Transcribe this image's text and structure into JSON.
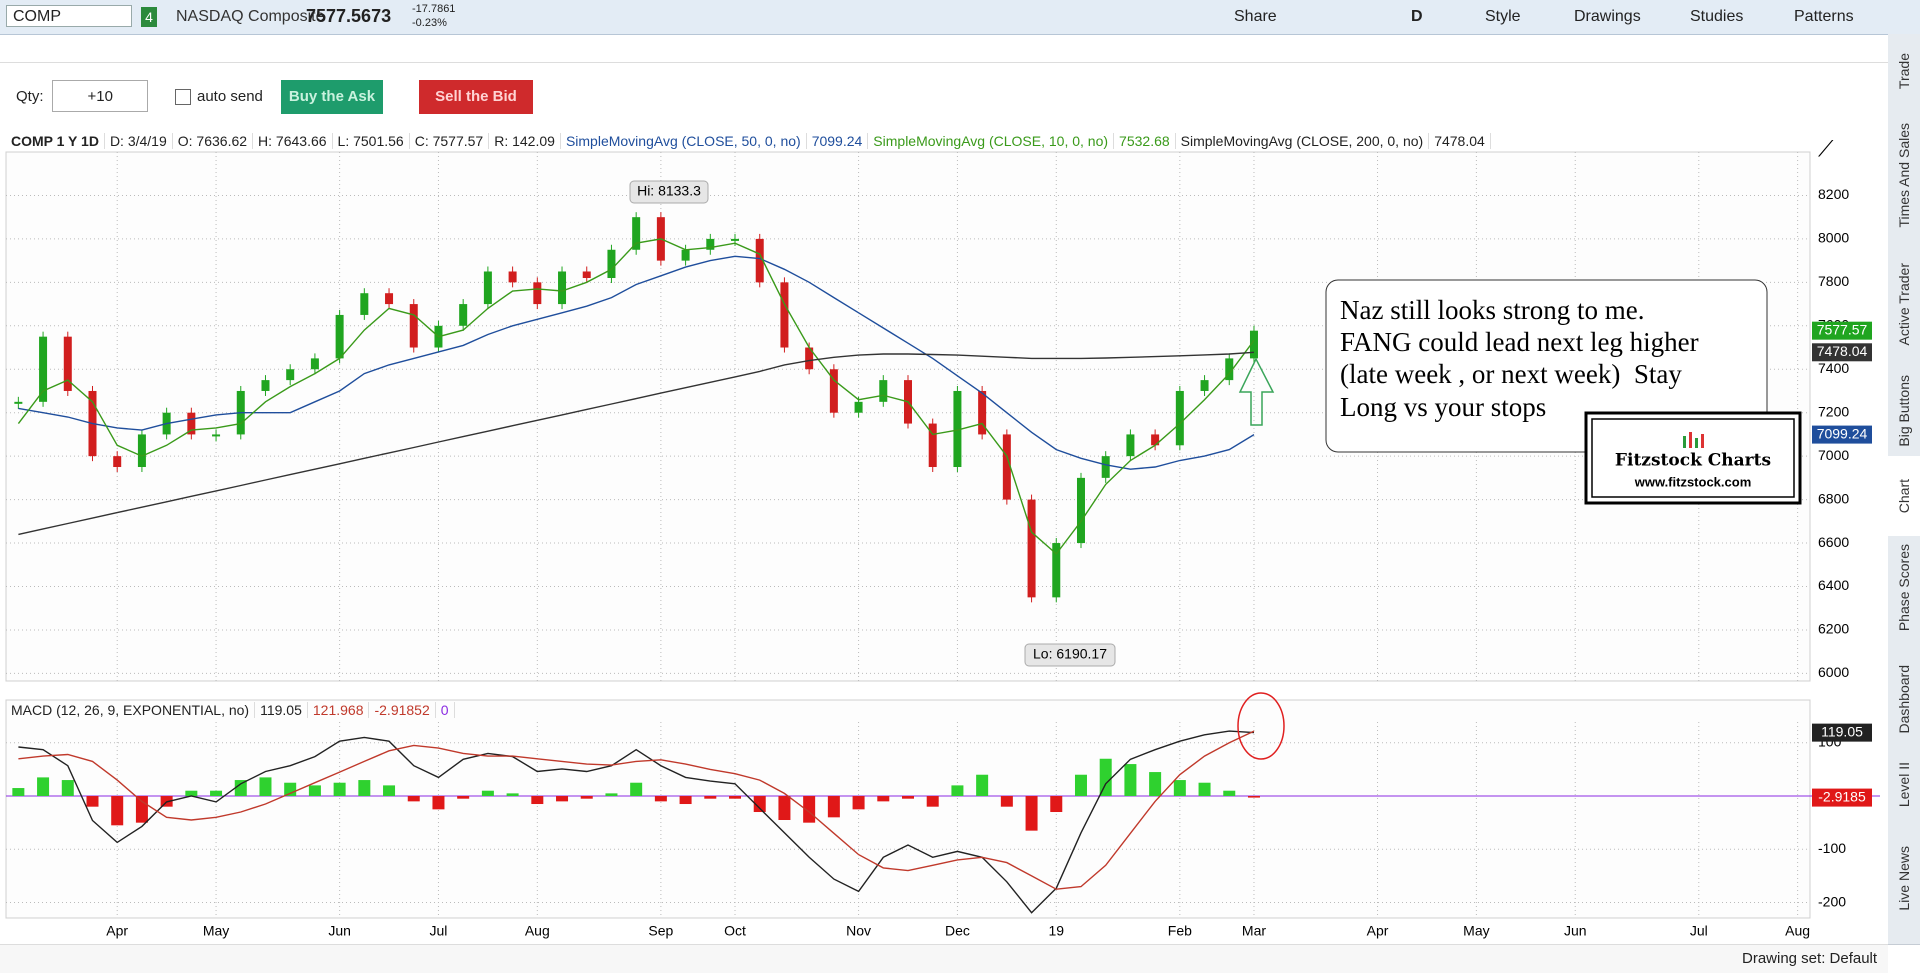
{
  "toolbar": {
    "symbol": "COMP",
    "link_group": "4",
    "description": "NASDAQ Composite",
    "last": "7577.5673",
    "net_change": "-17.7861",
    "pct_change": "-0.23%",
    "buttons": [
      "Share",
      "D",
      "Style",
      "Drawings",
      "Studies",
      "Patterns"
    ]
  },
  "order_bar": {
    "qty_label": "Qty:",
    "qty": "+10",
    "auto_send": "auto send",
    "buy": "Buy the Ask",
    "sell": "Sell the Bid"
  },
  "price_header": {
    "date": "D: 3/4/19",
    "open": "O: 7636.62",
    "high": "H: 7643.66",
    "low": "L: 7501.56",
    "close": "C: 7577.57",
    "range": "R: 142.09"
  },
  "chart_data": [
    {
      "type": "candlestick",
      "categories": [
        null,
        null,
        null,
        null,
        "Apr",
        null,
        null,
        null,
        "May",
        null,
        null,
        null,
        null,
        "Jun",
        null,
        null,
        null,
        "Jul",
        null,
        null,
        null,
        "Aug",
        null,
        null,
        null,
        null,
        "Sep",
        null,
        null,
        "Oct",
        null,
        null,
        null,
        null,
        "Nov",
        null,
        null,
        null,
        "Dec",
        null,
        null,
        null,
        "19",
        null,
        null,
        null,
        null,
        "Feb",
        null,
        null,
        "Mar",
        null,
        null,
        null,
        null,
        "Apr",
        null,
        null,
        null,
        "May",
        null,
        null,
        null,
        "Jun",
        null,
        null,
        null,
        null,
        "Jul",
        null,
        null,
        null,
        "Aug"
      ],
      "up_color": "#20a520",
      "down_color": "#d11e1e",
      "series": [
        {
          "name": "COMP 1 Y 1D",
          "value_box": true,
          "values": [
            7250,
            7550,
            7300,
            7000,
            6950,
            7100,
            7200,
            7100,
            7100,
            7300,
            7350,
            7400,
            7450,
            7650,
            7750,
            7700,
            7500,
            7600,
            7700,
            7850,
            7800,
            7700,
            7850,
            7820,
            7950,
            8100,
            7900,
            7950,
            8000,
            8000,
            7800,
            7500,
            7400,
            7200,
            7250,
            7350,
            7150,
            6950,
            7300,
            7100,
            6800,
            6350,
            6600,
            6900,
            7000,
            7100,
            7050,
            7300,
            7350,
            7450,
            7577.57,
            null,
            null,
            null,
            null,
            null,
            null,
            null,
            null,
            null,
            null,
            null,
            null,
            null,
            null,
            null,
            null,
            null,
            null,
            null,
            null,
            null,
            null
          ]
        },
        {
          "name": "SimpleMovingAvg (CLOSE, 50, 0, no)",
          "color": "#1f4e9c",
          "value_box": true,
          "values": [
            7220,
            7200,
            7180,
            7150,
            7130,
            7120,
            7150,
            7170,
            7190,
            7200,
            7200,
            7200,
            7250,
            7300,
            7380,
            7420,
            7450,
            7480,
            7510,
            7560,
            7600,
            7630,
            7660,
            7690,
            7730,
            7790,
            7830,
            7870,
            7900,
            7920,
            7910,
            7860,
            7800,
            7730,
            7660,
            7590,
            7520,
            7450,
            7370,
            7290,
            7200,
            7110,
            7030,
            6990,
            6960,
            6940,
            6950,
            6980,
            7000,
            7030,
            7099.24,
            null,
            null,
            null,
            null,
            null,
            null,
            null,
            null,
            null,
            null,
            null,
            null,
            null,
            null,
            null,
            null,
            null,
            null,
            null,
            null,
            null,
            null
          ]
        },
        {
          "name": "SimpleMovingAvg (CLOSE, 10, 0, no)",
          "color": "#3a9a1a",
          "value_box": false,
          "values": [
            7150,
            7300,
            7350,
            7250,
            7050,
            7000,
            7050,
            7120,
            7130,
            7150,
            7250,
            7320,
            7380,
            7450,
            7580,
            7680,
            7650,
            7550,
            7580,
            7680,
            7760,
            7770,
            7760,
            7800,
            7860,
            7980,
            8000,
            7950,
            7960,
            7980,
            7930,
            7700,
            7500,
            7350,
            7260,
            7280,
            7250,
            7100,
            7120,
            7150,
            7000,
            6650,
            6550,
            6700,
            6870,
            6980,
            7050,
            7150,
            7260,
            7380,
            7532.68,
            null,
            null,
            null,
            null,
            null,
            null,
            null,
            null,
            null,
            null,
            null,
            null,
            null,
            null,
            null,
            null,
            null,
            null,
            null,
            null,
            null,
            null
          ]
        },
        {
          "name": "SimpleMovingAvg (CLOSE, 200, 0, no)",
          "color": "#333333",
          "value_box": true,
          "values": [
            6640,
            6665,
            6690,
            6715,
            6740,
            6765,
            6790,
            6815,
            6840,
            6865,
            6890,
            6915,
            6940,
            6965,
            6990,
            7015,
            7040,
            7065,
            7090,
            7115,
            7140,
            7165,
            7190,
            7215,
            7240,
            7265,
            7290,
            7315,
            7340,
            7365,
            7390,
            7420,
            7440,
            7455,
            7465,
            7470,
            7470,
            7468,
            7465,
            7460,
            7455,
            7450,
            7450,
            7450,
            7452,
            7455,
            7458,
            7462,
            7466,
            7470,
            7478.04,
            null,
            null,
            null,
            null,
            null,
            null,
            null,
            null,
            null,
            null,
            null,
            null,
            null,
            null,
            null,
            null,
            null,
            null,
            null,
            null,
            null,
            null
          ]
        }
      ],
      "ylim": [
        5965,
        8400
      ],
      "yticks": [
        6000,
        6200,
        6400,
        6600,
        6800,
        7000,
        7200,
        7400,
        7600,
        7800,
        8000,
        8200
      ],
      "grid": true,
      "high_label": "Hi: 8133.3",
      "low_label": "Lo: 6190.17"
    },
    {
      "type": "line",
      "title": "MACD (12, 26, 9, EXPONENTIAL, no)",
      "zero_line": 0,
      "zero_color": "#8a2be2",
      "up_color": "#2fd12f",
      "down_color": "#e01818",
      "series": [
        {
          "color": "#222222",
          "value_box": true,
          "values": [
            92,
            87,
            57,
            -46,
            -87,
            -57,
            -11,
            0,
            -11,
            23,
            46,
            57,
            74,
            103,
            110,
            103,
            57,
            35,
            69,
            80,
            74,
            46,
            51,
            46,
            57,
            87,
            57,
            35,
            28,
            23,
            -23,
            -69,
            -115,
            -156,
            -179,
            -115,
            -92,
            -115,
            -104,
            -115,
            -161,
            -219,
            -173,
            -69,
            23,
            69,
            87,
            103,
            115,
            122,
            119.05,
            null,
            null,
            null,
            null,
            null,
            null,
            null,
            null,
            null,
            null,
            null,
            null,
            null,
            null,
            null,
            null,
            null,
            null,
            null,
            null,
            null,
            null
          ]
        },
        {
          "color": "#c0392b",
          "value_box": false,
          "values": [
            70,
            75,
            78,
            65,
            30,
            -10,
            -40,
            -45,
            -40,
            -30,
            -15,
            5,
            25,
            45,
            65,
            85,
            95,
            90,
            80,
            75,
            75,
            70,
            65,
            60,
            58,
            65,
            68,
            60,
            50,
            42,
            30,
            5,
            -30,
            -70,
            -110,
            -135,
            -140,
            -130,
            -120,
            -115,
            -125,
            -150,
            -175,
            -170,
            -130,
            -70,
            -10,
            40,
            75,
            100,
            121.968,
            null,
            null,
            null,
            null,
            null,
            null,
            null,
            null,
            null,
            null,
            null,
            null,
            null,
            null,
            null,
            null,
            null,
            null,
            null,
            null,
            null,
            null
          ]
        },
        {
          "style": "histogram",
          "value_box": true,
          "values": [
            15,
            35,
            30,
            -20,
            -55,
            -50,
            -20,
            10,
            10,
            30,
            35,
            25,
            20,
            25,
            30,
            20,
            -10,
            -25,
            -5,
            10,
            5,
            -15,
            -10,
            -5,
            5,
            25,
            -10,
            -15,
            -5,
            -5,
            -30,
            -45,
            -50,
            -40,
            -25,
            -10,
            -5,
            -20,
            20,
            40,
            -20,
            -65,
            -30,
            40,
            70,
            60,
            45,
            30,
            25,
            10,
            -2.91852,
            null,
            null,
            null,
            null,
            null,
            null,
            null,
            null,
            null,
            null,
            null,
            null,
            null,
            null,
            null,
            null,
            null,
            null,
            null,
            null,
            null,
            null
          ],
          "value_labels": [
            null,
            null,
            null,
            null,
            null,
            null,
            null,
            null,
            null,
            null,
            null,
            null,
            null,
            null,
            null,
            null,
            null,
            null,
            null,
            null,
            null,
            null,
            null,
            null,
            null,
            null,
            null,
            null,
            null,
            null,
            null,
            null,
            null,
            null,
            null,
            null,
            null,
            null,
            null,
            null,
            null,
            null,
            null,
            null,
            null,
            null,
            null,
            null,
            null,
            null,
            "-2.9185",
            null,
            null,
            null,
            null,
            null,
            null,
            null,
            null,
            null,
            null,
            null,
            null,
            null,
            null,
            null,
            null,
            null,
            null,
            null,
            null,
            null,
            null
          ]
        }
      ],
      "ylim": [
        -229,
        139
      ],
      "yticks": [
        -200,
        -100,
        100
      ],
      "grid": true
    }
  ],
  "note": {
    "lines": [
      "Naz still looks strong to me.",
      "FANG could lead next leg higher",
      "(late week , or next week)  Stay",
      "Long vs your stops"
    ]
  },
  "logo": {
    "name": "Fitzstock Charts",
    "url": "www.fitzstock.com"
  },
  "side_tabs": [
    "Trade",
    "Times And Sales",
    "Active Trader",
    "Big Buttons",
    "Chart",
    "Phase Scores",
    "Dashboard",
    "Level II",
    "Live News"
  ],
  "status": "Drawing set: Default"
}
